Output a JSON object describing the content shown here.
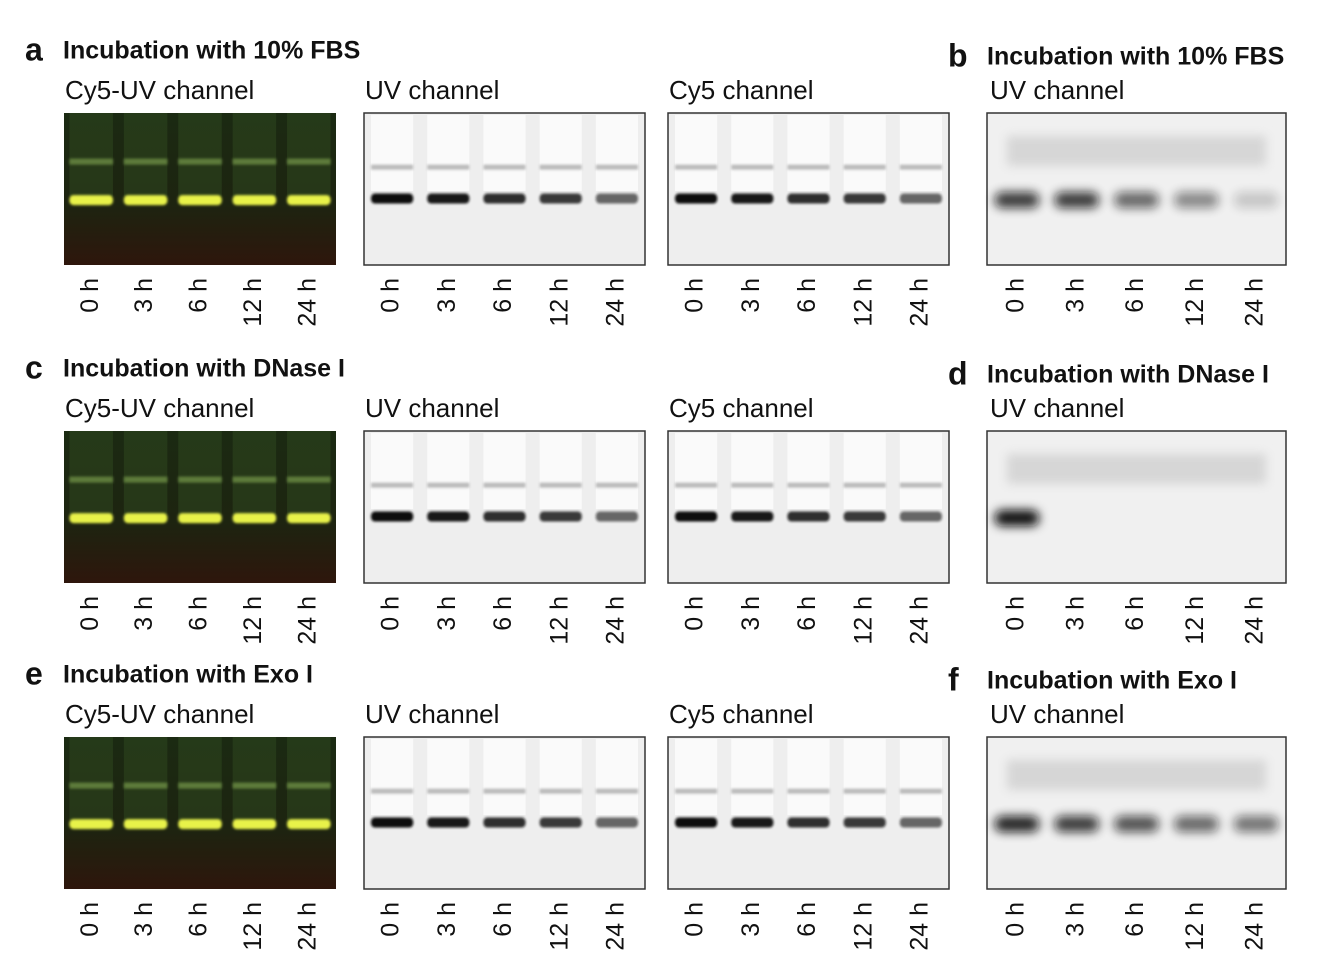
{
  "panels": [
    {
      "letter": "a",
      "title": "Incubation with 10% FBS",
      "gels": [
        {
          "channel": "Cy5-UV channel",
          "lanes": [
            "0 h",
            "3 h",
            "6 h",
            "12 h",
            "24 h"
          ]
        },
        {
          "channel": "UV channel",
          "lanes": [
            "0 h",
            "3 h",
            "6 h",
            "12 h",
            "24 h"
          ]
        },
        {
          "channel": "Cy5 channel",
          "lanes": [
            "0 h",
            "3 h",
            "6 h",
            "12 h",
            "24 h"
          ]
        }
      ]
    },
    {
      "letter": "b",
      "title": "Incubation with 10% FBS",
      "gels": [
        {
          "channel": "UV channel",
          "lanes": [
            "0 h",
            "3 h",
            "6 h",
            "12 h",
            "24 h"
          ]
        }
      ]
    },
    {
      "letter": "c",
      "title": "Incubation with DNase I",
      "gels": [
        {
          "channel": "Cy5-UV channel",
          "lanes": [
            "0 h",
            "3 h",
            "6 h",
            "12 h",
            "24 h"
          ]
        },
        {
          "channel": "UV channel",
          "lanes": [
            "0 h",
            "3 h",
            "6 h",
            "12 h",
            "24 h"
          ]
        },
        {
          "channel": "Cy5 channel",
          "lanes": [
            "0 h",
            "3 h",
            "6 h",
            "12 h",
            "24 h"
          ]
        }
      ]
    },
    {
      "letter": "d",
      "title": "Incubation with DNase I",
      "gels": [
        {
          "channel": "UV channel",
          "lanes": [
            "0 h",
            "3 h",
            "6 h",
            "12 h",
            "24 h"
          ]
        }
      ]
    },
    {
      "letter": "e",
      "title": "Incubation with Exo I",
      "gels": [
        {
          "channel": "Cy5-UV channel",
          "lanes": [
            "0 h",
            "3 h",
            "6 h",
            "12 h",
            "24 h"
          ]
        },
        {
          "channel": "UV channel",
          "lanes": [
            "0 h",
            "3 h",
            "6 h",
            "12 h",
            "24 h"
          ]
        },
        {
          "channel": "Cy5 channel",
          "lanes": [
            "0 h",
            "3 h",
            "6 h",
            "12 h",
            "24 h"
          ]
        }
      ]
    },
    {
      "letter": "f",
      "title": "Incubation with Exo I",
      "gels": [
        {
          "channel": "UV channel",
          "lanes": [
            "0 h",
            "3 h",
            "6 h",
            "12 h",
            "24 h"
          ]
        }
      ]
    }
  ]
}
